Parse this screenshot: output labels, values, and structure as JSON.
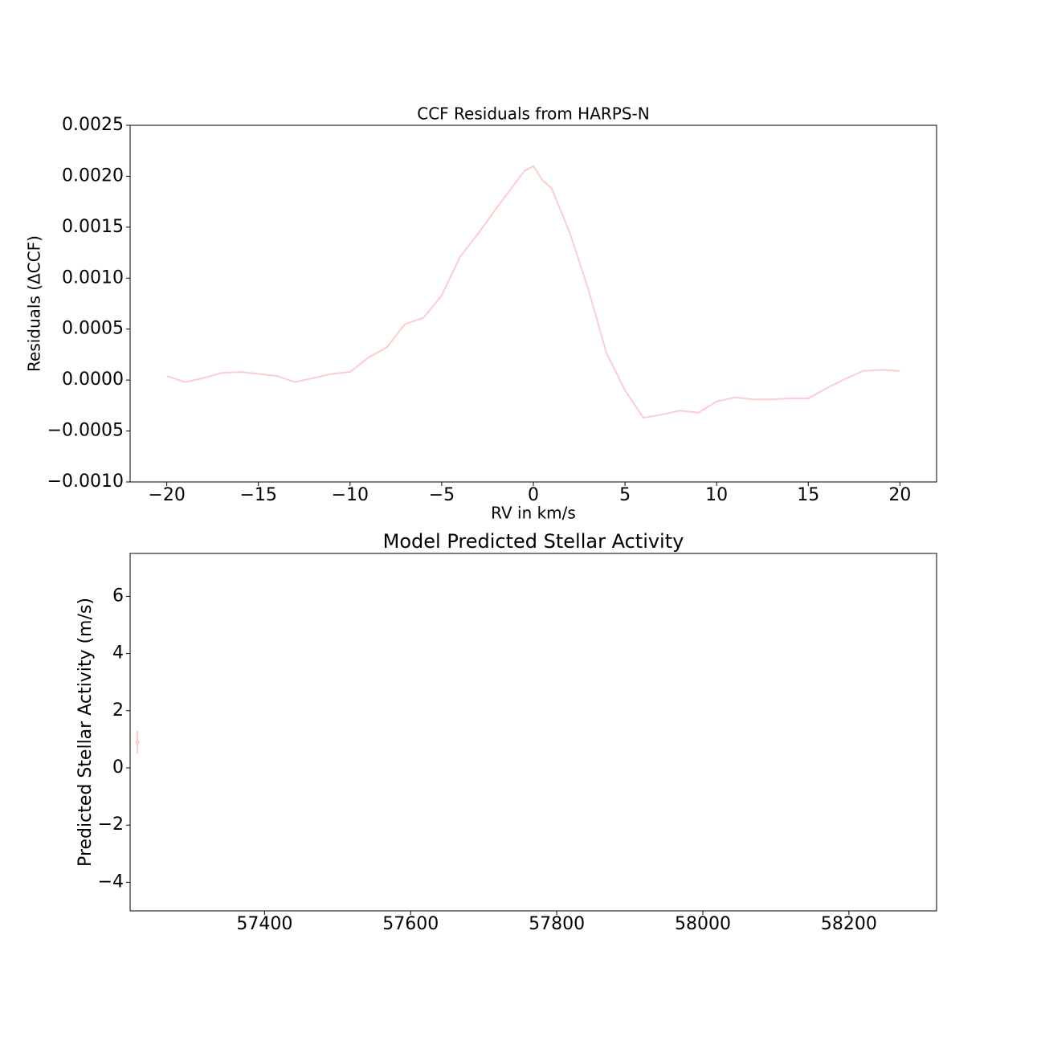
{
  "chart_data": [
    {
      "type": "line",
      "title": "CCF Residuals from HARPS-N",
      "xlabel": "RV in km/s",
      "ylabel": "Residuals (ΔCCF)",
      "x": [
        -20,
        -19,
        -18,
        -17,
        -16,
        -15,
        -14,
        -13,
        -12,
        -11,
        -10,
        -9,
        -8,
        -7,
        -6,
        -5,
        -4,
        -3,
        -2,
        -1,
        -0.5,
        0,
        0.5,
        1,
        2,
        3,
        4,
        5,
        6,
        7,
        8,
        9,
        10,
        11,
        12,
        13,
        14,
        15,
        16,
        17,
        18,
        19,
        20
      ],
      "values": [
        4e-05,
        -2e-05,
        2e-05,
        7e-05,
        8e-05,
        6e-05,
        4e-05,
        -2e-05,
        2e-05,
        6e-05,
        8e-05,
        0.00022,
        0.00032,
        0.00055,
        0.00061,
        0.00083,
        0.00121,
        0.00144,
        0.00169,
        0.00193,
        0.00205,
        0.0021,
        0.00196,
        0.00188,
        0.00144,
        0.00089,
        0.00026,
        -0.0001,
        -0.00037,
        -0.00034,
        -0.0003,
        -0.00032,
        -0.00021,
        -0.00017,
        -0.00019,
        -0.00019,
        -0.00018,
        -0.00018,
        -8e-05,
        1e-05,
        9e-05,
        0.0001,
        9e-05
      ],
      "color": "#ffcccc",
      "xlim": [
        -22,
        22
      ],
      "ylim": [
        -0.001,
        0.0025
      ],
      "xticks": [
        {
          "value": -20,
          "label": "−20"
        },
        {
          "value": -15,
          "label": "−15"
        },
        {
          "value": -10,
          "label": "−10"
        },
        {
          "value": -5,
          "label": "−5"
        },
        0,
        5,
        10,
        15,
        20
      ],
      "yticks": [
        {
          "value": -0.001,
          "label": "−0.0010"
        },
        {
          "value": -0.0005,
          "label": "−0.0005"
        },
        {
          "value": 0,
          "label": "0.0000"
        },
        {
          "value": 0.0005,
          "label": "0.0005"
        },
        {
          "value": 0.001,
          "label": "0.0010"
        },
        {
          "value": 0.0015,
          "label": "0.0015"
        },
        {
          "value": 0.002,
          "label": "0.0020"
        },
        {
          "value": 0.0025,
          "label": "0.0025"
        }
      ]
    },
    {
      "type": "errorbar",
      "title": "Model Predicted Stellar Activity",
      "ylabel": "Predicted Stellar Activity (m/s)",
      "x": [
        57226
      ],
      "values": [
        0.9
      ],
      "errors": [
        0.4
      ],
      "color": "#ffcccc",
      "xlim": [
        57216,
        58320
      ],
      "ylim": [
        -5,
        7.5
      ],
      "xticks": [
        57400,
        57600,
        57800,
        58000,
        58200
      ],
      "yticks": [
        {
          "value": -4,
          "label": "−4"
        },
        {
          "value": -2,
          "label": "−2"
        },
        0,
        2,
        4,
        6
      ]
    }
  ]
}
